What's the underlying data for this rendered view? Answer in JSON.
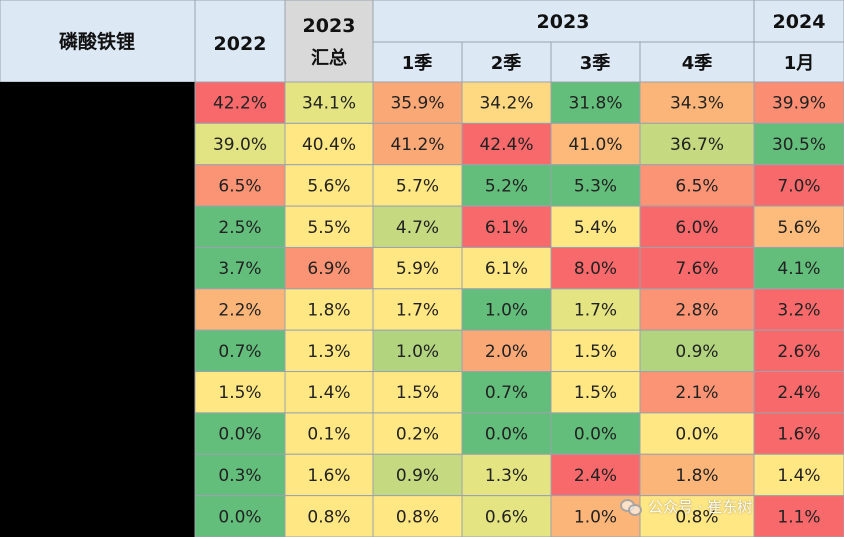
{
  "header": {
    "corner_label": "磷酸铁锂",
    "col_2022": "2022",
    "col_2023_total_year": "2023",
    "col_2023_total_label": "汇总",
    "group_2023": "2023",
    "group_2024": "2024",
    "sub_q1": "1季",
    "sub_q2": "2季",
    "sub_q3": "3季",
    "sub_q4": "4季",
    "sub_m1": "1月"
  },
  "watermark": "公众号 · 崔东树",
  "colors": {
    "header_bg": "#dce9f5",
    "header_total_bg": "#d9d9d9",
    "row_label_bg": "#000000",
    "scale_low": "#63be7b",
    "scale_mid": "#ffeb84",
    "scale_high": "#f8696b"
  },
  "chart_data": {
    "type": "heatmap",
    "color_scale": "per-column, green=low, yellow=mid, red=high",
    "columns": [
      "2022",
      "2023汇总",
      "2023 1季",
      "2023 2季",
      "2023 3季",
      "2023 4季",
      "2024 1月"
    ],
    "rows": [
      [
        "42.2%",
        "34.1%",
        "35.9%",
        "34.2%",
        "31.8%",
        "34.3%",
        "39.9%"
      ],
      [
        "39.0%",
        "40.4%",
        "41.2%",
        "42.4%",
        "41.0%",
        "36.7%",
        "30.5%"
      ],
      [
        "6.5%",
        "5.6%",
        "5.7%",
        "5.2%",
        "5.3%",
        "6.5%",
        "7.0%"
      ],
      [
        "2.5%",
        "5.5%",
        "4.7%",
        "6.1%",
        "5.4%",
        "6.0%",
        "5.6%"
      ],
      [
        "3.7%",
        "6.9%",
        "5.9%",
        "6.1%",
        "8.0%",
        "7.6%",
        "4.1%"
      ],
      [
        "2.2%",
        "1.8%",
        "1.7%",
        "1.0%",
        "1.7%",
        "2.8%",
        "3.2%"
      ],
      [
        "0.7%",
        "1.3%",
        "1.0%",
        "2.0%",
        "1.5%",
        "0.9%",
        "2.6%"
      ],
      [
        "1.5%",
        "1.4%",
        "1.5%",
        "0.7%",
        "1.5%",
        "2.1%",
        "2.4%"
      ],
      [
        "0.0%",
        "0.1%",
        "0.2%",
        "0.0%",
        "0.0%",
        "0.0%",
        "1.6%"
      ],
      [
        "0.3%",
        "1.6%",
        "0.9%",
        "1.3%",
        "2.4%",
        "1.8%",
        "1.4%"
      ],
      [
        "0.0%",
        "0.8%",
        "0.8%",
        "0.6%",
        "1.0%",
        "0.8%",
        "1.1%"
      ]
    ],
    "cell_colors": [
      [
        "#f8696b",
        "#e4e483",
        "#fba877",
        "#ffd882",
        "#63be7b",
        "#fcb579",
        "#fb8e72"
      ],
      [
        "#e2e383",
        "#ffe784",
        "#fba877",
        "#f8696b",
        "#fdb97a",
        "#c4d980",
        "#63be7b"
      ],
      [
        "#fb9474",
        "#ffe784",
        "#ffe784",
        "#63be7b",
        "#63be7b",
        "#fb9474",
        "#f8696b"
      ],
      [
        "#63be7b",
        "#ffe784",
        "#c4d980",
        "#f8696b",
        "#ffe784",
        "#f8696b",
        "#fdbc7b"
      ],
      [
        "#63be7b",
        "#fb9474",
        "#ffe784",
        "#ffe784",
        "#f8696b",
        "#f8696b",
        "#63be7b"
      ],
      [
        "#fcb579",
        "#ffe784",
        "#ffe784",
        "#63be7b",
        "#e4e483",
        "#fb9474",
        "#f8696b"
      ],
      [
        "#63be7b",
        "#ffe784",
        "#b2d47f",
        "#fba877",
        "#ffe784",
        "#b2d47f",
        "#f8696b"
      ],
      [
        "#ffe784",
        "#ffe784",
        "#ffe784",
        "#63be7b",
        "#ffe784",
        "#fb9474",
        "#f8696b"
      ],
      [
        "#63be7b",
        "#ffe784",
        "#ffe784",
        "#63be7b",
        "#63be7b",
        "#ffe784",
        "#f8696b"
      ],
      [
        "#63be7b",
        "#ffe784",
        "#c4d980",
        "#e4e483",
        "#f8696b",
        "#fcb579",
        "#ffe784"
      ],
      [
        "#63be7b",
        "#ffe784",
        "#ffe784",
        "#e4e483",
        "#fcb579",
        "#ffe784",
        "#f8696b"
      ]
    ]
  }
}
